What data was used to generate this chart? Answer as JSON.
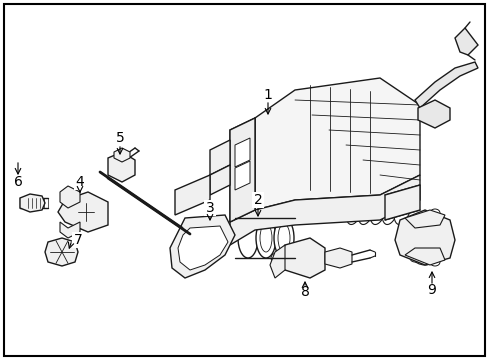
{
  "figsize": [
    4.89,
    3.6
  ],
  "dpi": 100,
  "background_color": "#ffffff",
  "image_b64": ""
}
